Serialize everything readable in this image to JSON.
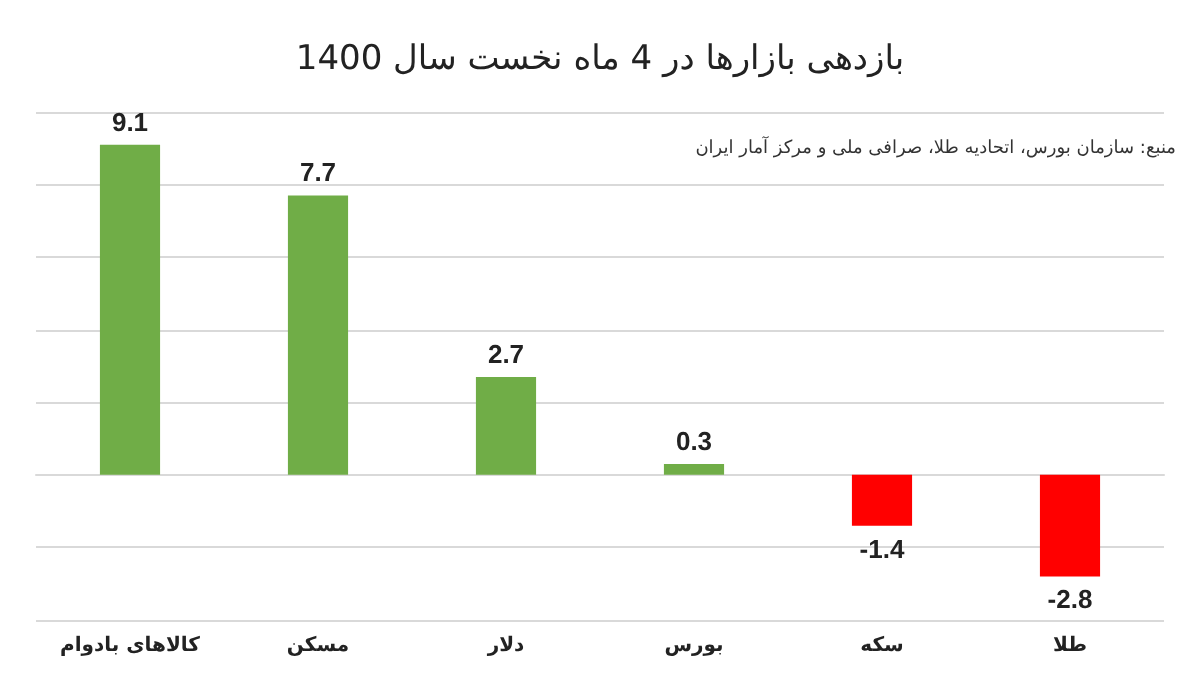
{
  "chart_data": {
    "type": "bar",
    "title": "بازدهی بازارها در 4 ماه نخست سال 1400",
    "categories": [
      "کالاهای بادوام",
      "مسکن",
      "دلار",
      "بورس",
      "سکه",
      "طلا"
    ],
    "values": [
      9.1,
      7.7,
      2.7,
      0.3,
      -1.4,
      -2.8
    ],
    "colors": [
      "#70ad47",
      "#70ad47",
      "#70ad47",
      "#70ad47",
      "#ff0000",
      "#ff0000"
    ],
    "ylim": [
      -4,
      10
    ],
    "yticks": [
      {
        "value": -4,
        "label": null
      },
      {
        "value": -2,
        "label": null
      },
      {
        "value": 0,
        "label": null
      },
      {
        "value": 2,
        "label": null
      },
      {
        "value": 4,
        "label": null
      },
      {
        "value": 6,
        "label": null
      },
      {
        "value": 8,
        "label": null
      },
      {
        "value": 10,
        "label": null
      }
    ],
    "tick_labels": "x",
    "grid": "y",
    "data_labels": true,
    "annotations": [
      "منبع: سازمان بورس، اتحادیه طلا، صرافی ملی و مرکز آمار ایران"
    ]
  }
}
